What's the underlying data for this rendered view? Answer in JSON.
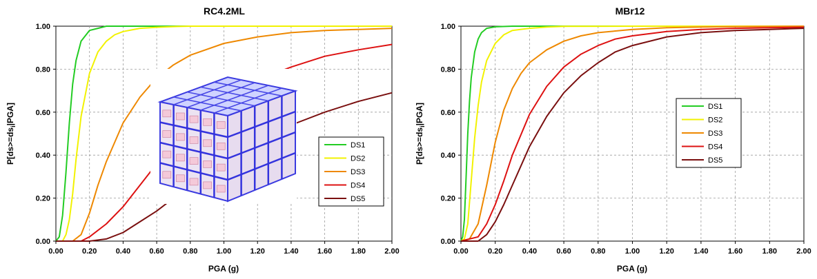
{
  "colors": {
    "DS1": "#22cc22",
    "DS2": "#f2f200",
    "DS3": "#ee8800",
    "DS4": "#dd1111",
    "DS5": "#7a0f0f"
  },
  "chart_data": [
    {
      "type": "line",
      "title": "RC4.2ML",
      "xlabel": "PGA (g)",
      "ylabel": "P[ds>=ds",
      "ylabel_sub": "i",
      "ylabel_tail": "|PGA]",
      "xlim": [
        0,
        2
      ],
      "ylim": [
        0,
        1
      ],
      "grid": true,
      "legend_position": "right-center",
      "xticks": [
        "0.00",
        "0.20",
        "0.40",
        "0.60",
        "0.80",
        "1.00",
        "1.20",
        "1.40",
        "1.60",
        "1.80",
        "2.00"
      ],
      "yticks": [
        "0.00",
        "0.20",
        "0.40",
        "0.60",
        "0.80",
        "1.00"
      ],
      "inset_image": "3d-rc-frame-building-model",
      "series": [
        {
          "name": "DS1",
          "x": [
            0,
            0.02,
            0.04,
            0.06,
            0.08,
            0.1,
            0.12,
            0.15,
            0.2,
            0.25,
            0.3,
            0.4,
            0.5,
            0.6,
            0.8,
            1.0,
            1.5,
            2.0
          ],
          "y": [
            0,
            0.02,
            0.12,
            0.32,
            0.55,
            0.73,
            0.84,
            0.93,
            0.98,
            0.99,
            1.0,
            1.0,
            1.0,
            1.0,
            1.0,
            1.0,
            1.0,
            1.0
          ]
        },
        {
          "name": "DS2",
          "x": [
            0,
            0.04,
            0.06,
            0.08,
            0.1,
            0.12,
            0.15,
            0.2,
            0.25,
            0.3,
            0.35,
            0.4,
            0.5,
            0.6,
            0.7,
            0.8,
            1.0,
            1.5,
            2.0
          ],
          "y": [
            0,
            0,
            0.03,
            0.1,
            0.22,
            0.38,
            0.58,
            0.78,
            0.88,
            0.93,
            0.96,
            0.975,
            0.99,
            0.995,
            0.998,
            1.0,
            1.0,
            1.0,
            1.0
          ]
        },
        {
          "name": "DS3",
          "x": [
            0,
            0.1,
            0.15,
            0.2,
            0.25,
            0.3,
            0.4,
            0.5,
            0.6,
            0.7,
            0.8,
            1.0,
            1.2,
            1.4,
            1.6,
            1.8,
            2.0
          ],
          "y": [
            0,
            0,
            0.03,
            0.13,
            0.26,
            0.37,
            0.55,
            0.67,
            0.76,
            0.82,
            0.865,
            0.92,
            0.95,
            0.97,
            0.98,
            0.985,
            0.99
          ]
        },
        {
          "name": "DS4",
          "x": [
            0,
            0.15,
            0.2,
            0.3,
            0.4,
            0.5,
            0.6,
            0.7,
            0.8,
            0.9,
            1.0,
            1.2,
            1.4,
            1.6,
            1.8,
            2.0
          ],
          "y": [
            0,
            0,
            0.02,
            0.08,
            0.16,
            0.26,
            0.36,
            0.45,
            0.53,
            0.6,
            0.66,
            0.75,
            0.81,
            0.86,
            0.89,
            0.915
          ]
        },
        {
          "name": "DS5",
          "x": [
            0,
            0.2,
            0.3,
            0.4,
            0.5,
            0.6,
            0.8,
            1.0,
            1.2,
            1.4,
            1.6,
            1.8,
            2.0
          ],
          "y": [
            0,
            0,
            0.01,
            0.04,
            0.09,
            0.14,
            0.26,
            0.37,
            0.46,
            0.54,
            0.6,
            0.65,
            0.69
          ]
        }
      ]
    },
    {
      "type": "line",
      "title": "MBr12",
      "xlabel": "PGA (g)",
      "ylabel": "P[ds>=ds",
      "ylabel_sub": "i",
      "ylabel_tail": "|PGA]",
      "xlim": [
        0,
        2
      ],
      "ylim": [
        0,
        1
      ],
      "grid": true,
      "legend_position": "right-center",
      "xticks": [
        "0.00",
        "0.20",
        "0.40",
        "0.60",
        "0.80",
        "1.00",
        "1.20",
        "1.40",
        "1.60",
        "1.80",
        "2.00"
      ],
      "yticks": [
        "0.00",
        "0.20",
        "0.40",
        "0.60",
        "0.80",
        "1.00"
      ],
      "series": [
        {
          "name": "DS1",
          "x": [
            0,
            0.01,
            0.02,
            0.03,
            0.04,
            0.05,
            0.06,
            0.08,
            0.1,
            0.12,
            0.15,
            0.2,
            0.3,
            0.5,
            1.0,
            2.0
          ],
          "y": [
            0,
            0.02,
            0.1,
            0.3,
            0.5,
            0.65,
            0.76,
            0.88,
            0.94,
            0.97,
            0.99,
            0.997,
            1.0,
            1.0,
            1.0,
            1.0
          ]
        },
        {
          "name": "DS2",
          "x": [
            0,
            0.02,
            0.04,
            0.06,
            0.08,
            0.1,
            0.12,
            0.15,
            0.2,
            0.25,
            0.3,
            0.4,
            0.5,
            0.6,
            1.0,
            2.0
          ],
          "y": [
            0,
            0.01,
            0.08,
            0.28,
            0.48,
            0.63,
            0.74,
            0.84,
            0.92,
            0.96,
            0.98,
            0.99,
            0.996,
            0.999,
            1.0,
            1.0
          ]
        },
        {
          "name": "DS3",
          "x": [
            0,
            0.05,
            0.1,
            0.15,
            0.2,
            0.25,
            0.3,
            0.35,
            0.4,
            0.5,
            0.6,
            0.7,
            0.8,
            1.0,
            1.2,
            1.4,
            1.6,
            2.0
          ],
          "y": [
            0,
            0.01,
            0.08,
            0.26,
            0.46,
            0.61,
            0.71,
            0.78,
            0.83,
            0.89,
            0.93,
            0.955,
            0.97,
            0.985,
            0.993,
            0.996,
            0.998,
            1.0
          ]
        },
        {
          "name": "DS4",
          "x": [
            0,
            0.1,
            0.15,
            0.2,
            0.25,
            0.3,
            0.4,
            0.5,
            0.6,
            0.7,
            0.8,
            0.9,
            1.0,
            1.2,
            1.4,
            1.6,
            1.8,
            2.0
          ],
          "y": [
            0,
            0.02,
            0.08,
            0.17,
            0.28,
            0.4,
            0.59,
            0.72,
            0.81,
            0.87,
            0.91,
            0.94,
            0.955,
            0.975,
            0.985,
            0.99,
            0.993,
            0.995
          ]
        },
        {
          "name": "DS5",
          "x": [
            0,
            0.1,
            0.15,
            0.2,
            0.25,
            0.3,
            0.4,
            0.5,
            0.6,
            0.7,
            0.8,
            0.9,
            1.0,
            1.2,
            1.4,
            1.6,
            1.8,
            2.0
          ],
          "y": [
            0,
            0,
            0.03,
            0.09,
            0.17,
            0.26,
            0.44,
            0.58,
            0.69,
            0.77,
            0.83,
            0.88,
            0.91,
            0.95,
            0.97,
            0.98,
            0.985,
            0.99
          ]
        }
      ]
    }
  ]
}
